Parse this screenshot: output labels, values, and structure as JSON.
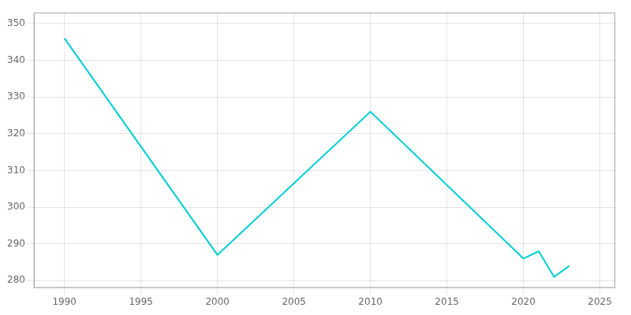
{
  "chart_data": {
    "type": "line",
    "x": [
      1990,
      2000,
      2010,
      2020,
      2021,
      2022,
      2023
    ],
    "values": [
      346,
      287,
      326,
      286,
      288,
      281,
      284
    ],
    "color": "#00CED1",
    "xlim": [
      1988,
      2026
    ],
    "ylim": [
      278,
      353
    ],
    "xticks": [
      1990,
      1995,
      2000,
      2005,
      2010,
      2015,
      2020,
      2025
    ],
    "yticks": [
      280,
      290,
      300,
      310,
      320,
      330,
      340,
      350
    ],
    "grid": true
  }
}
